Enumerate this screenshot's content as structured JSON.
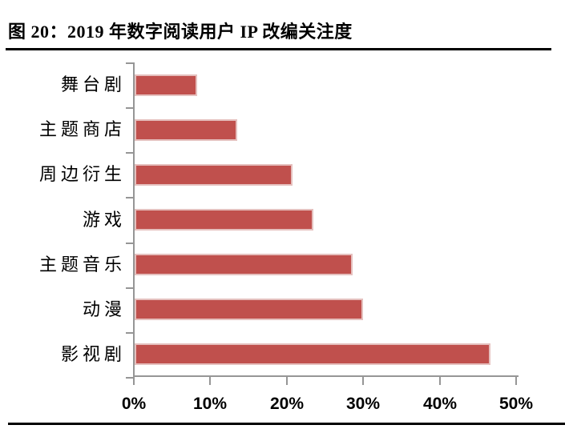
{
  "page": {
    "title": "图 20：2019 年数字阅读用户 IP 改编关注度"
  },
  "chart_data": {
    "type": "bar",
    "orientation": "horizontal",
    "title": "图 20：2019 年数字阅读用户 IP 改编关注度",
    "categories": [
      "舞台剧",
      "主题商店",
      "周边衍生",
      "游戏",
      "主题音乐",
      "动漫",
      "影视剧"
    ],
    "values": [
      8.2,
      13.4,
      20.6,
      23.4,
      28.5,
      29.9,
      46.5
    ],
    "unit": "%",
    "xlabel": "",
    "ylabel": "",
    "xlim": [
      0,
      50
    ],
    "x_tick_labels": [
      "0%",
      "10%",
      "20%",
      "30%",
      "40%",
      "50%"
    ],
    "x_tick_values": [
      0,
      10,
      20,
      30,
      40,
      50
    ],
    "grid": false,
    "legend": false,
    "bar_color": "#C0504D",
    "bar_border_color": "#E5C0BE",
    "axis_color": "#969696",
    "text_color": "#000000"
  }
}
